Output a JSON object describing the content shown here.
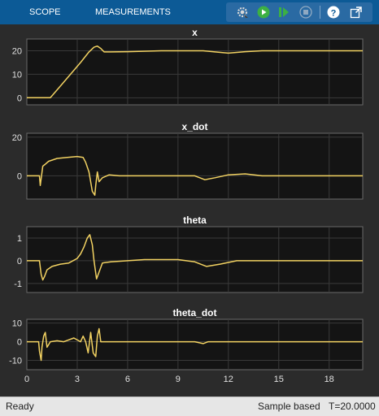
{
  "toolbar": {
    "tabs": [
      "SCOPE",
      "MEASUREMENTS"
    ],
    "colors": {
      "bar": "#0c5a96",
      "run": "#3cb043"
    },
    "icons": [
      "settings-icon",
      "run-icon",
      "step-forward-icon",
      "stop-icon",
      "help-icon",
      "undock-icon"
    ]
  },
  "status": {
    "state": "Ready",
    "mode": "Sample based",
    "time": "T=20.0000"
  },
  "chart_data": [
    {
      "type": "line",
      "title": "x",
      "xlim": [
        0,
        20
      ],
      "ylim": [
        -3,
        25
      ],
      "yticks": [
        0,
        10,
        20
      ],
      "grid": true,
      "color": "#f2d262",
      "series": [
        {
          "x": [
            0,
            1.4,
            2.0,
            2.6,
            3.2,
            3.7,
            4.0,
            4.2,
            4.4,
            4.6,
            5.0,
            6,
            8,
            10,
            10.5,
            11.2,
            12,
            13,
            14,
            16,
            18,
            20
          ],
          "y": [
            0,
            0,
            5,
            10,
            15,
            19.5,
            21.5,
            22,
            21,
            19.5,
            19.5,
            19.6,
            20,
            20,
            20,
            19.5,
            19,
            19.6,
            20,
            20,
            20,
            20
          ]
        }
      ]
    },
    {
      "type": "line",
      "title": "x_dot",
      "xlim": [
        0,
        20
      ],
      "ylim": [
        -12,
        22
      ],
      "yticks": [
        0,
        20
      ],
      "grid": true,
      "color": "#f2d262",
      "series": [
        {
          "x": [
            0,
            0.7,
            0.75,
            0.8,
            0.95,
            1.1,
            1.3,
            1.8,
            2.4,
            3.0,
            3.35,
            3.5,
            3.7,
            3.9,
            4.05,
            4.1,
            4.2,
            4.3,
            4.5,
            4.9,
            5.5,
            6.5,
            8,
            10,
            10.6,
            11.2,
            12,
            13,
            14,
            16,
            18,
            20
          ],
          "y": [
            0,
            0,
            0,
            -5,
            5,
            6,
            7.5,
            9,
            9.5,
            10,
            9.5,
            7,
            2,
            -8,
            -10,
            -5,
            2,
            -3,
            -1,
            0.5,
            0,
            0,
            0,
            0,
            -2,
            -1,
            0.5,
            1,
            0,
            0,
            0,
            0
          ]
        }
      ]
    },
    {
      "type": "line",
      "title": "theta",
      "xlim": [
        0,
        20
      ],
      "ylim": [
        -1.4,
        1.5
      ],
      "yticks": [
        -1,
        0,
        1
      ],
      "grid": true,
      "color": "#f2d262",
      "series": [
        {
          "x": [
            0,
            0.75,
            0.85,
            0.95,
            1.05,
            1.2,
            1.5,
            2.0,
            2.5,
            3.0,
            3.2,
            3.4,
            3.6,
            3.75,
            3.9,
            4.0,
            4.15,
            4.3,
            4.5,
            5.0,
            6.0,
            7.0,
            9,
            10,
            10.7,
            11.5,
            12.5,
            14,
            16,
            18,
            20
          ],
          "y": [
            0,
            0,
            -0.6,
            -0.85,
            -0.7,
            -0.4,
            -0.25,
            -0.15,
            -0.1,
            0.1,
            0.3,
            0.6,
            1.0,
            1.15,
            0.7,
            0,
            -0.8,
            -0.5,
            -0.1,
            -0.05,
            0,
            0.05,
            0.05,
            -0.05,
            -0.25,
            -0.15,
            0,
            0,
            0,
            0,
            0
          ]
        }
      ]
    },
    {
      "type": "line",
      "title": "theta_dot",
      "xlim": [
        0,
        20
      ],
      "ylim": [
        -15,
        12
      ],
      "yticks": [
        -10,
        0,
        10
      ],
      "xticks": [
        0,
        3,
        6,
        9,
        12,
        15,
        18
      ],
      "grid": true,
      "color": "#f2d262",
      "series": [
        {
          "x": [
            0,
            0.7,
            0.75,
            0.85,
            0.9,
            1.0,
            1.1,
            1.2,
            1.4,
            1.8,
            2.2,
            2.8,
            3.2,
            3.35,
            3.5,
            3.65,
            3.8,
            3.95,
            4.1,
            4.2,
            4.3,
            4.4,
            4.6,
            5.0,
            6,
            10,
            10.5,
            10.8,
            11.5,
            12,
            14,
            16,
            18,
            20
          ],
          "y": [
            0,
            0,
            -5,
            -10,
            -3,
            3,
            5,
            -3,
            0,
            0.5,
            0,
            2,
            0,
            3,
            0,
            -6,
            5,
            -6,
            -8,
            3,
            7,
            0,
            0,
            0,
            0,
            0,
            -1,
            0,
            0,
            0,
            0,
            0,
            0,
            0
          ]
        }
      ]
    }
  ]
}
